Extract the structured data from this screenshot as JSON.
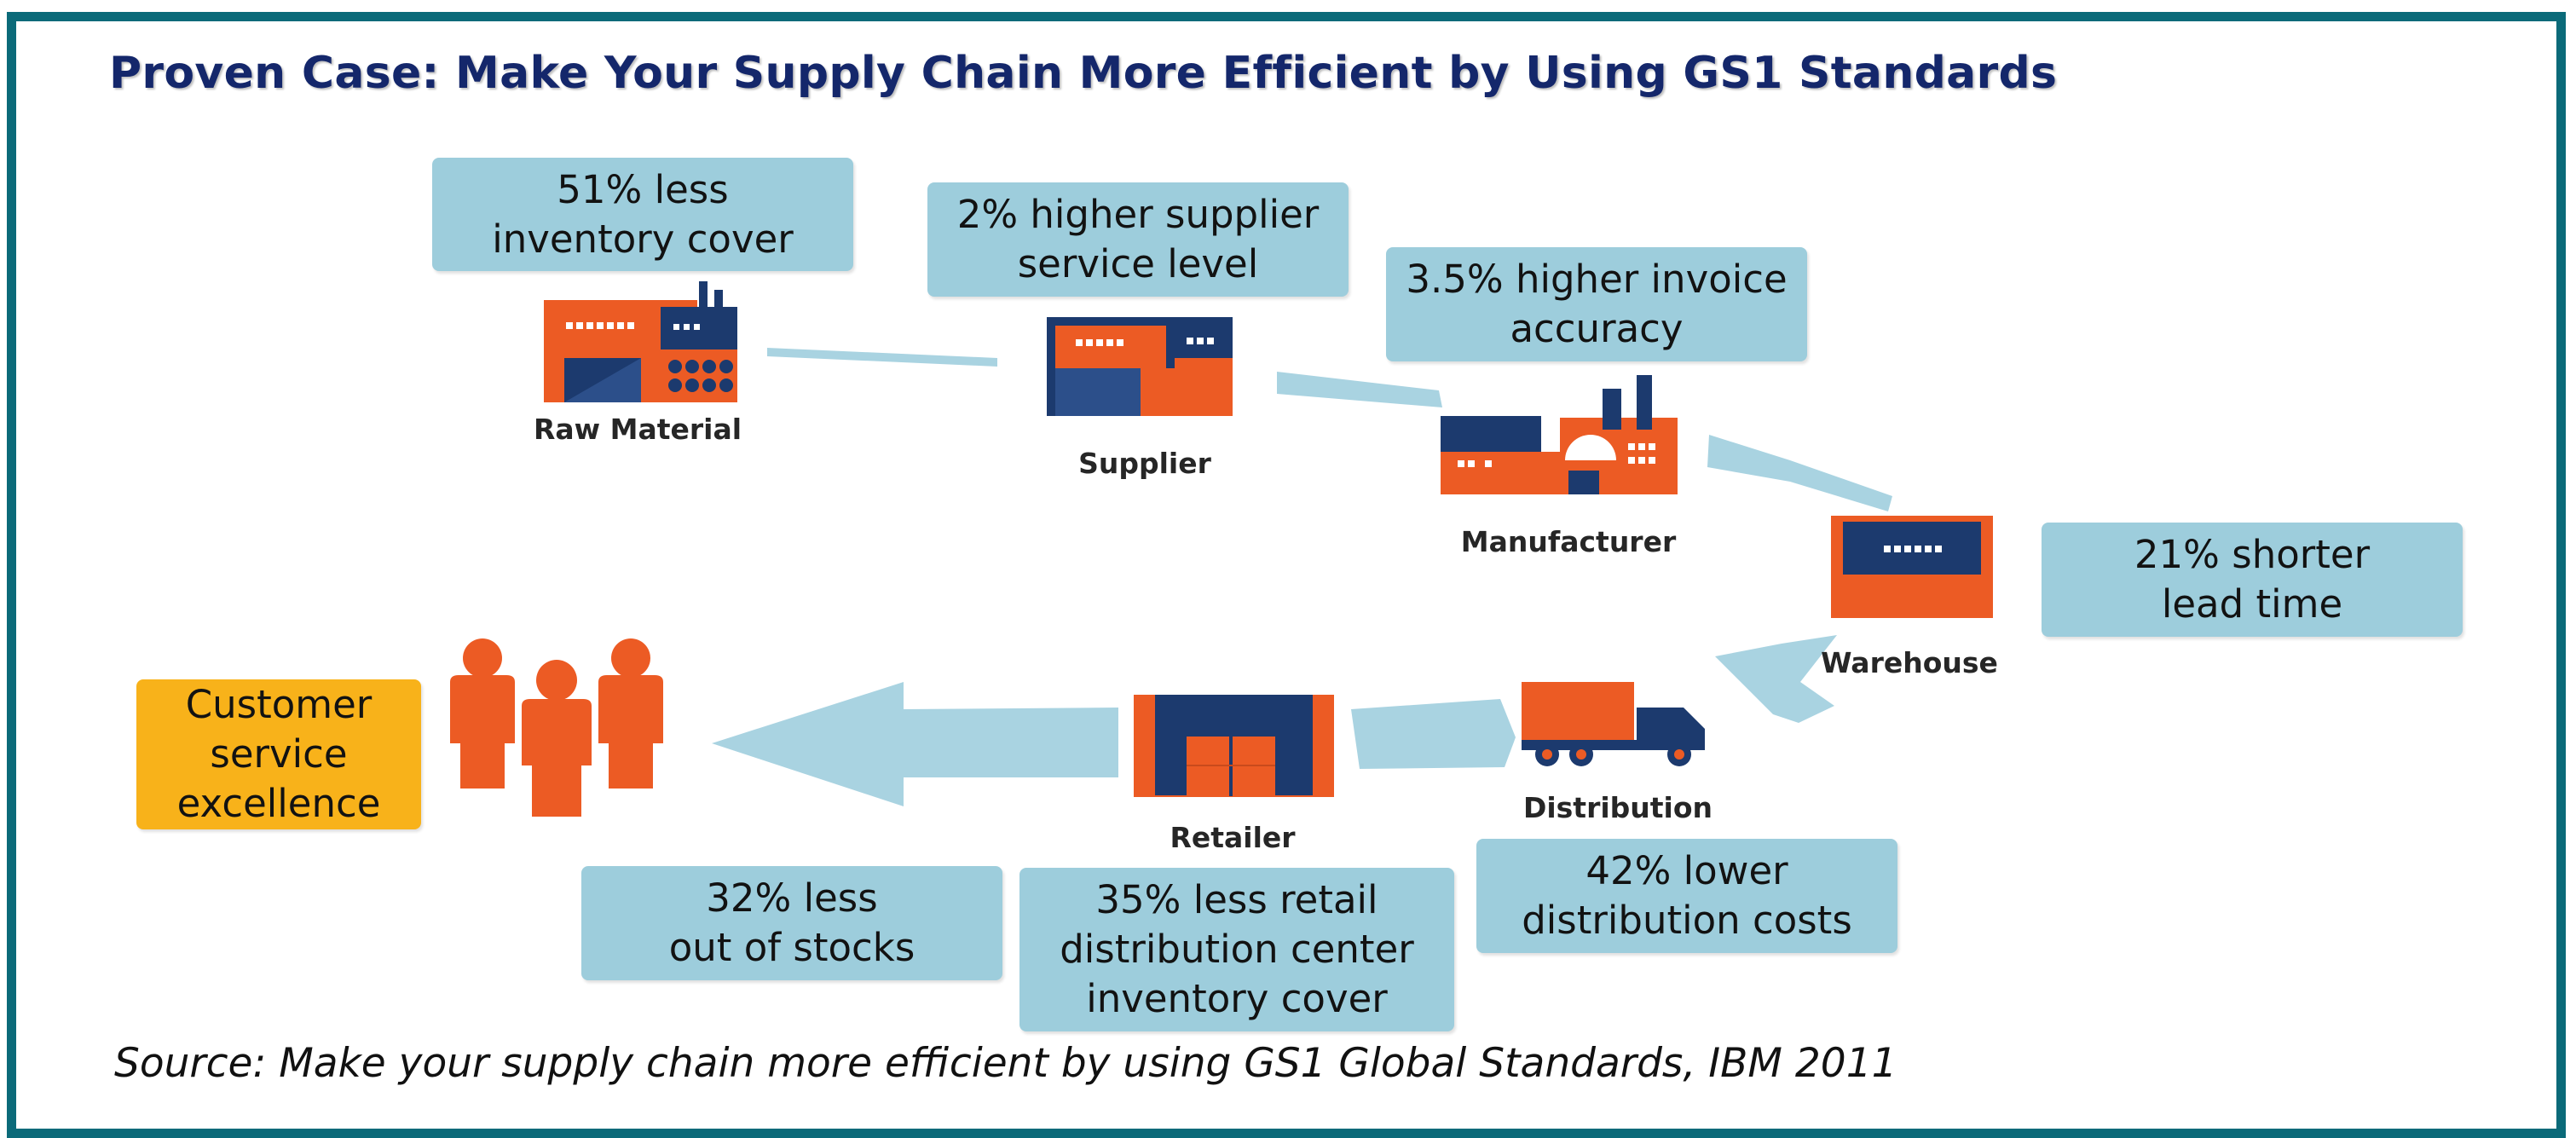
{
  "title": "Proven Case: Make Your Supply Chain More Efficient by Using GS1 Standards",
  "source": "Source: Make your supply chain more efficient by using GS1 Global Standards, IBM 2011",
  "stages": {
    "raw_material": "Raw Material",
    "supplier": "Supplier",
    "manufacturer": "Manufacturer",
    "warehouse": "Warehouse",
    "distribution": "Distribution",
    "retailer": "Retailer"
  },
  "benefits": {
    "inventory_cover": "51% less\ninventory cover",
    "supplier_service": "2% higher supplier\nservice level",
    "invoice_accuracy": "3.5% higher invoice\naccuracy",
    "lead_time": "21% shorter\nlead time",
    "distribution_costs": "42% lower\ndistribution costs",
    "retail_dc_inventory": "35% less retail\ndistribution center\ninventory cover",
    "out_of_stocks": "32% less\nout of stocks"
  },
  "outcome": "Customer\nservice\nexcellence",
  "colors": {
    "frame": "#0b6a79",
    "title": "#14276b",
    "card": "#9dcddc",
    "outcome": "#f8b21a",
    "building_orange": "#ec5b24",
    "building_navy": "#1c3a6e",
    "arrow": "#a9d3e1"
  },
  "icons": {
    "raw_material": "factory-icon",
    "supplier": "building-icon",
    "manufacturer": "factory-icon",
    "warehouse": "warehouse-icon",
    "distribution": "truck-icon",
    "retailer": "store-icon",
    "customers": "people-icon"
  }
}
